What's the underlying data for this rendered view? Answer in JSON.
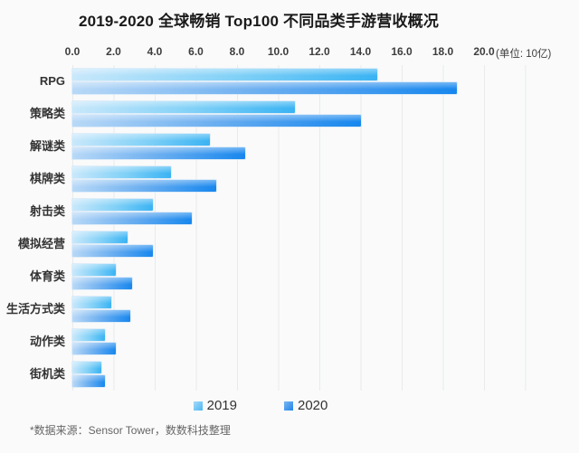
{
  "title": "2019-2020 全球畅销 Top100 不同品类手游营收概况",
  "axis": {
    "unit_label": "(单位: 10亿)"
  },
  "footer": {
    "source_note": "*数据来源：Sensor Tower，数数科技整理"
  },
  "colors": {
    "series_2019": "#6ec5f5",
    "series_2020": "#2f93ec",
    "gridline": "#e8eaec",
    "background": "#fafafa"
  },
  "chart_data": {
    "type": "bar",
    "orientation": "horizontal",
    "title": "2019-2020 全球畅销 Top100 不同品类手游营收概况",
    "unit": "10亿",
    "categories": [
      "RPG",
      "策略类",
      "解谜类",
      "棋牌类",
      "射击类",
      "模拟经营",
      "体育类",
      "生活方式类",
      "动作类",
      "街机类"
    ],
    "series": [
      {
        "name": "2019",
        "color": "#6ec5f5",
        "values": [
          14.8,
          10.8,
          6.7,
          4.8,
          3.9,
          2.7,
          2.1,
          1.9,
          1.6,
          1.4
        ]
      },
      {
        "name": "2020",
        "color": "#2f93ec",
        "values": [
          18.7,
          14.0,
          8.4,
          7.0,
          5.8,
          3.9,
          2.9,
          2.8,
          2.1,
          1.6
        ]
      }
    ],
    "x_ticks": [
      "0.0",
      "2.0",
      "4.0",
      "6.0",
      "8.0",
      "10.0",
      "12.0",
      "14.0",
      "16.0",
      "18.0",
      "20.0"
    ],
    "x_tick_step": 2,
    "xlim": [
      0,
      24
    ],
    "grid": true,
    "legend_position": "bottom"
  }
}
